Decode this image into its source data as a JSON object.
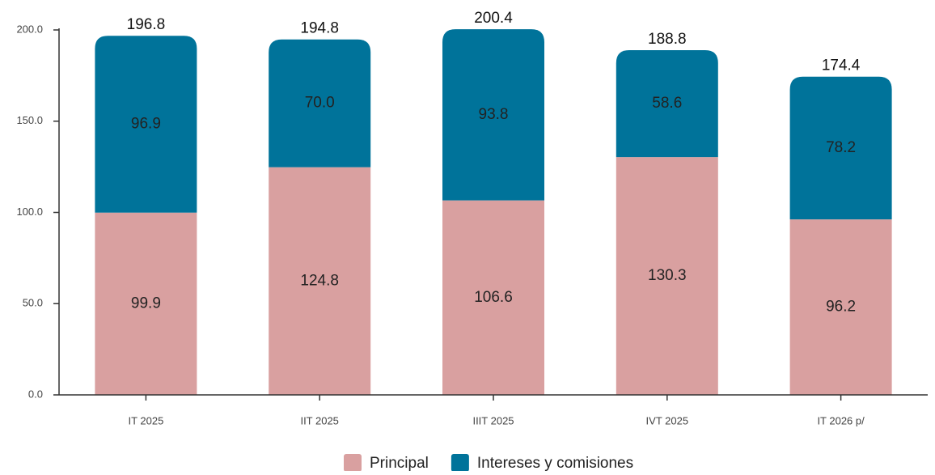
{
  "chart_data": {
    "type": "stacked_bar",
    "categories": [
      "IT 2025",
      "IIT 2025",
      "IIIT 2025",
      "IVT 2025",
      "IT 2026 p/"
    ],
    "series": [
      {
        "name": "Principal",
        "color": "#d9a0a0",
        "values": [
          99.9,
          124.8,
          106.6,
          130.3,
          96.2
        ],
        "value_labels": [
          "99.9",
          "124.8",
          "106.6",
          "130.3",
          "96.2"
        ]
      },
      {
        "name": "Intereses y comisiones",
        "color": "#00739a",
        "values": [
          96.9,
          70.0,
          93.8,
          58.6,
          78.2
        ],
        "value_labels": [
          "96.9",
          "70.0",
          "93.8",
          "58.6",
          "78.2"
        ]
      }
    ],
    "totals": [
      196.8,
      194.8,
      200.4,
      188.8,
      174.4
    ],
    "ylim": [
      0,
      200
    ],
    "yticks": [
      {
        "value": 0,
        "label": "0.0"
      },
      {
        "value": 50,
        "label": "50.0"
      },
      {
        "value": 100,
        "label": "100.0"
      },
      {
        "value": 150,
        "label": "150.0"
      },
      {
        "value": 200,
        "label": "200.0"
      }
    ],
    "legend": "bottom"
  }
}
